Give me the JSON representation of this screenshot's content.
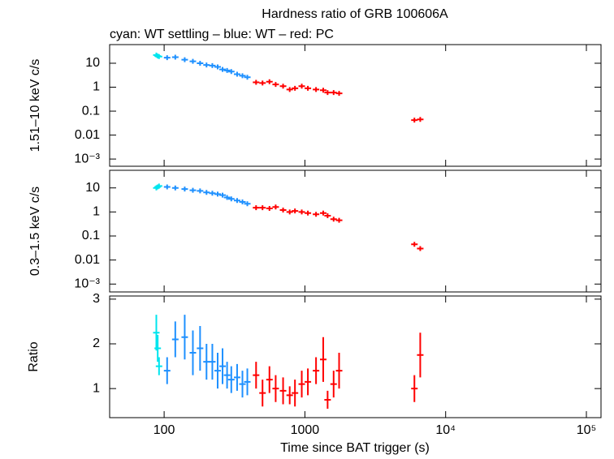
{
  "chart_data": [
    {
      "type": "scatter",
      "title": "Hardness ratio of GRB 100606A",
      "subtitle": "cyan: WT settling – blue: WT – red: PC",
      "ylabel": "1.51–10 keV c/s",
      "xscale": "log",
      "yscale": "log",
      "xlim": [
        41,
        127000
      ],
      "ylim": [
        0.0005,
        60
      ],
      "xticks": [
        100,
        1000,
        {
          "value": 10000,
          "label": "10⁴"
        },
        {
          "value": 100000,
          "label": "10⁵"
        }
      ],
      "yticks": [
        10,
        1,
        0.1,
        0.01,
        {
          "value": 0.001,
          "label": "10⁻³"
        }
      ],
      "series": [
        {
          "color": "#00e5ee",
          "x": [
            88,
            90,
            92
          ],
          "values": [
            22,
            20,
            19
          ]
        },
        {
          "color": "#1e90ff",
          "x": [
            105,
            120,
            140,
            160,
            180,
            200,
            220,
            240,
            260,
            280,
            300,
            330,
            360,
            390
          ],
          "values": [
            17,
            18,
            14,
            12,
            10,
            8.5,
            8,
            7,
            5.5,
            5,
            4.5,
            3.5,
            3,
            2.6
          ]
        },
        {
          "color": "#ff0000",
          "x": [
            450,
            500,
            560,
            620,
            700,
            780,
            850,
            950,
            1050,
            1200,
            1350,
            1450,
            1600,
            1750,
            6000,
            6600
          ],
          "values": [
            1.6,
            1.5,
            1.7,
            1.3,
            1.1,
            0.8,
            0.9,
            1.1,
            0.9,
            0.8,
            0.75,
            0.6,
            0.6,
            0.55,
            0.042,
            0.045
          ]
        }
      ]
    },
    {
      "type": "scatter",
      "ylabel": "0.3–1.5 keV c/s",
      "xscale": "log",
      "yscale": "log",
      "xlim": [
        41,
        127000
      ],
      "ylim": [
        0.00047,
        54
      ],
      "xticks": [
        100,
        1000,
        {
          "value": 10000,
          "label": "10⁴"
        },
        {
          "value": 100000,
          "label": "10⁵"
        }
      ],
      "yticks": [
        10,
        1,
        0.1,
        0.01,
        {
          "value": 0.001,
          "label": "10⁻³"
        }
      ],
      "series": [
        {
          "color": "#00e5ee",
          "x": [
            88,
            90,
            92
          ],
          "values": [
            10,
            11,
            12
          ]
        },
        {
          "color": "#1e90ff",
          "x": [
            105,
            120,
            140,
            160,
            180,
            200,
            220,
            240,
            260,
            280,
            300,
            330,
            360,
            390
          ],
          "values": [
            11,
            10,
            9,
            8,
            7.5,
            6.5,
            6,
            5.5,
            5,
            4,
            3.5,
            3,
            2.6,
            2.2
          ]
        },
        {
          "color": "#ff0000",
          "x": [
            450,
            500,
            560,
            620,
            700,
            780,
            850,
            950,
            1050,
            1200,
            1350,
            1450,
            1600,
            1750,
            6000,
            6600
          ],
          "values": [
            1.5,
            1.5,
            1.4,
            1.6,
            1.2,
            1.0,
            1.1,
            1.0,
            0.9,
            0.8,
            0.9,
            0.7,
            0.5,
            0.45,
            0.045,
            0.03
          ]
        }
      ]
    },
    {
      "type": "errorbar",
      "ylabel": "Ratio",
      "xlabel": "Time since BAT trigger (s)",
      "xscale": "log",
      "xlim": [
        41,
        127000
      ],
      "ylim": [
        0.35,
        3.07
      ],
      "xticks": [
        100,
        1000,
        {
          "value": 10000,
          "label": "10⁴"
        },
        {
          "value": 100000,
          "label": "10⁵"
        }
      ],
      "yticks": [
        1,
        2,
        3
      ],
      "series": [
        {
          "color": "#00e5ee",
          "x": [
            88,
            90,
            92
          ],
          "values": [
            2.25,
            1.9,
            1.5
          ],
          "errors": [
            0.4,
            0.3,
            0.2
          ]
        },
        {
          "color": "#1e90ff",
          "x": [
            105,
            120,
            140,
            160,
            180,
            200,
            220,
            240,
            260,
            280,
            300,
            330,
            360,
            390
          ],
          "values": [
            1.4,
            2.1,
            2.15,
            1.8,
            1.9,
            1.6,
            1.6,
            1.4,
            1.5,
            1.3,
            1.2,
            1.25,
            1.1,
            1.15
          ],
          "errors": [
            0.3,
            0.4,
            0.5,
            0.5,
            0.5,
            0.4,
            0.4,
            0.4,
            0.4,
            0.3,
            0.3,
            0.3,
            0.3,
            0.3
          ]
        },
        {
          "color": "#ff0000",
          "x": [
            450,
            500,
            560,
            620,
            700,
            780,
            850,
            950,
            1050,
            1200,
            1350,
            1450,
            1600,
            1750,
            6000,
            6600
          ],
          "values": [
            1.3,
            0.9,
            1.2,
            1.0,
            0.95,
            0.85,
            0.9,
            1.1,
            1.15,
            1.4,
            1.65,
            0.75,
            1.1,
            1.4,
            1.0,
            1.75
          ],
          "errors": [
            0.3,
            0.3,
            0.3,
            0.3,
            0.3,
            0.2,
            0.3,
            0.3,
            0.3,
            0.3,
            0.5,
            0.2,
            0.3,
            0.4,
            0.3,
            0.5
          ]
        }
      ]
    }
  ]
}
